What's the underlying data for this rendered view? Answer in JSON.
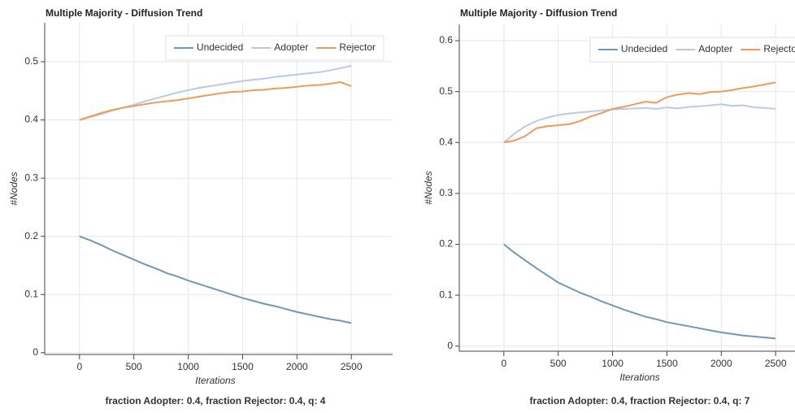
{
  "chart_data": [
    {
      "type": "line",
      "title": "Multiple Majority - Diffusion Trend",
      "x_label": "Iterations",
      "y_label": "#Nodes",
      "caption": "fraction Adopter: 0.4, fraction Rejector: 0.4, q: 4",
      "x": [
        0,
        100,
        200,
        300,
        400,
        500,
        600,
        700,
        800,
        900,
        1000,
        1100,
        1200,
        1300,
        1400,
        1500,
        1600,
        1700,
        1800,
        1900,
        2000,
        2100,
        2200,
        2300,
        2400,
        2500
      ],
      "series": [
        {
          "name": "Undecided",
          "color": "#6f97b8",
          "values": [
            0.2,
            0.193,
            0.185,
            0.176,
            0.168,
            0.16,
            0.152,
            0.145,
            0.137,
            0.131,
            0.124,
            0.118,
            0.112,
            0.106,
            0.1,
            0.094,
            0.089,
            0.084,
            0.08,
            0.075,
            0.07,
            0.066,
            0.062,
            0.058,
            0.055,
            0.051
          ]
        },
        {
          "name": "Adopter",
          "color": "#b9cbe4",
          "values": [
            0.4,
            0.405,
            0.41,
            0.416,
            0.421,
            0.426,
            0.432,
            0.437,
            0.442,
            0.447,
            0.451,
            0.455,
            0.458,
            0.461,
            0.464,
            0.467,
            0.469,
            0.471,
            0.474,
            0.476,
            0.478,
            0.48,
            0.482,
            0.485,
            0.489,
            0.493
          ]
        },
        {
          "name": "Rejector",
          "color": "#f09a5a",
          "values": [
            0.4,
            0.406,
            0.412,
            0.417,
            0.421,
            0.424,
            0.427,
            0.43,
            0.432,
            0.434,
            0.437,
            0.44,
            0.443,
            0.446,
            0.448,
            0.449,
            0.451,
            0.452,
            0.454,
            0.455,
            0.457,
            0.459,
            0.46,
            0.462,
            0.465,
            0.458
          ]
        }
      ],
      "xlim": [
        -320,
        2880
      ],
      "ylim": [
        -0.003,
        0.567
      ],
      "xticks": [
        0,
        500,
        1000,
        1500,
        2000,
        2500
      ],
      "yticks": [
        0,
        0.1,
        0.2,
        0.3,
        0.4,
        0.5
      ],
      "grid": true,
      "legend": "top-right"
    },
    {
      "type": "line",
      "title": "Multiple Majority - Diffusion Trend",
      "x_label": "Iterations",
      "y_label": "#Nodes",
      "caption": "fraction Adopter: 0.4, fraction Rejector: 0.4, q: 7",
      "x": [
        0,
        100,
        200,
        300,
        400,
        500,
        600,
        700,
        800,
        900,
        1000,
        1100,
        1200,
        1300,
        1400,
        1500,
        1600,
        1700,
        1800,
        1900,
        2000,
        2100,
        2200,
        2300,
        2400,
        2500
      ],
      "series": [
        {
          "name": "Undecided",
          "color": "#6f97b8",
          "values": [
            0.2,
            0.183,
            0.168,
            0.153,
            0.139,
            0.125,
            0.115,
            0.105,
            0.097,
            0.088,
            0.08,
            0.072,
            0.065,
            0.058,
            0.053,
            0.047,
            0.043,
            0.039,
            0.035,
            0.031,
            0.027,
            0.024,
            0.021,
            0.019,
            0.017,
            0.015
          ]
        },
        {
          "name": "Adopter",
          "color": "#b9cbe4",
          "values": [
            0.4,
            0.418,
            0.432,
            0.442,
            0.449,
            0.454,
            0.457,
            0.459,
            0.461,
            0.463,
            0.465,
            0.466,
            0.467,
            0.468,
            0.466,
            0.469,
            0.467,
            0.47,
            0.471,
            0.473,
            0.475,
            0.472,
            0.473,
            0.469,
            0.468,
            0.466
          ]
        },
        {
          "name": "Rejector",
          "color": "#f09a5a",
          "values": [
            0.4,
            0.404,
            0.413,
            0.428,
            0.432,
            0.434,
            0.436,
            0.442,
            0.451,
            0.458,
            0.466,
            0.47,
            0.475,
            0.48,
            0.478,
            0.489,
            0.494,
            0.497,
            0.495,
            0.499,
            0.5,
            0.503,
            0.507,
            0.51,
            0.514,
            0.518
          ]
        }
      ],
      "xlim": [
        -410,
        2880
      ],
      "ylim": [
        -0.01,
        0.632
      ],
      "xticks": [
        0,
        500,
        1000,
        1500,
        2000,
        2500
      ],
      "yticks": [
        0,
        0.1,
        0.2,
        0.3,
        0.4,
        0.5,
        0.6
      ],
      "grid": true,
      "legend": "top-right"
    }
  ]
}
